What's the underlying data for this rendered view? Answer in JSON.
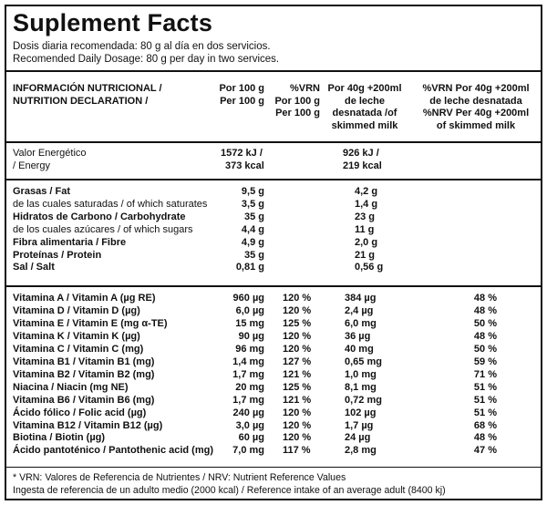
{
  "title": "Suplement Facts",
  "dosage": [
    "Dosis diaria recomendada: 80 g al día en dos servicios.",
    "Recomended Daily Dosage: 80 g per day in two services."
  ],
  "header": {
    "label": [
      "INFORMACIÓN NUTRICIONAL /",
      "NUTRITION DECLARATION /"
    ],
    "per100": [
      "Por 100 g",
      "Per 100 g"
    ],
    "vrn100": [
      "%VRN",
      "Por 100 g",
      "Per 100 g"
    ],
    "milk": [
      "Por 40g +200ml",
      "de leche",
      "desnatada /of",
      "skimmed milk"
    ],
    "vrnmilk": [
      "%VRN Por 40g +200ml",
      "de leche desnatada",
      "%NRV Per 40g +200ml",
      "of skimmed milk"
    ]
  },
  "energy": {
    "label": [
      "Valor Energético",
      "/ Energy"
    ],
    "per100": [
      "1572 kJ /",
      "373 kcal"
    ],
    "milk": [
      "926 kJ /",
      "219 kcal"
    ]
  },
  "macros": [
    {
      "label": "Grasas / Fat",
      "bold": true,
      "per100": "9,5 g",
      "milk": "4,2 g"
    },
    {
      "label": "de las cuales saturadas / of which saturates",
      "bold": false,
      "per100": "3,5 g",
      "milk": "1,4 g"
    },
    {
      "label": "Hidratos de Carbono / Carbohydrate",
      "bold": true,
      "per100": "35 g",
      "milk": "23 g"
    },
    {
      "label": "de los cuales azúcares / of which sugars",
      "bold": false,
      "per100": "4,4 g",
      "milk": "11 g"
    },
    {
      "label": "Fibra alimentaria / Fibre",
      "bold": true,
      "per100": "4,9 g",
      "milk": "2,0 g"
    },
    {
      "label": "Proteínas / Protein",
      "bold": true,
      "per100": "35 g",
      "milk": "21 g"
    },
    {
      "label": "Sal / Salt",
      "bold": true,
      "per100": "0,81 g",
      "milk": "0,56 g"
    }
  ],
  "vitamins": [
    {
      "label": "Vitamina A / Vitamin A (µg RE)",
      "per100": "960 µg",
      "vrn": "120 %",
      "milk": "384 µg",
      "vrnmilk": "48 %"
    },
    {
      "label": "Vitamina D / Vitamin D (µg)",
      "per100": "6,0 µg",
      "vrn": "120 %",
      "milk": "2,4 µg",
      "vrnmilk": "48 %"
    },
    {
      "label": "Vitamina E / Vitamin E (mg α-TE)",
      "per100": "15 mg",
      "vrn": "125 %",
      "milk": "6,0 mg",
      "vrnmilk": "50 %"
    },
    {
      "label": "Vitamina K / Vitamin K (µg)",
      "per100": "90 µg",
      "vrn": "120 %",
      "milk": "36 µg",
      "vrnmilk": "48 %"
    },
    {
      "label": "Vitamina C / Vitamin C (mg)",
      "per100": "96 mg",
      "vrn": "120 %",
      "milk": "40 mg",
      "vrnmilk": "50 %"
    },
    {
      "label": "Vitamina B1 / Vitamin B1 (mg)",
      "per100": "1,4 mg",
      "vrn": "127 %",
      "milk": "0,65 mg",
      "vrnmilk": "59 %"
    },
    {
      "label": "Vitamina B2 / Vitamin B2 (mg)",
      "per100": "1,7 mg",
      "vrn": "121 %",
      "milk": "1,0 mg",
      "vrnmilk": "71 %"
    },
    {
      "label": "Niacina / Niacin (mg NE)",
      "per100": "20 mg",
      "vrn": "125 %",
      "milk": "8,1 mg",
      "vrnmilk": "51 %"
    },
    {
      "label": "Vitamina B6 / Vitamin B6 (mg)",
      "per100": "1,7 mg",
      "vrn": "121 %",
      "milk": "0,72 mg",
      "vrnmilk": "51 %"
    },
    {
      "label": "Ácido fólico / Folic acid (µg)",
      "per100": "240 µg",
      "vrn": "120 %",
      "milk": "102 µg",
      "vrnmilk": "51 %"
    },
    {
      "label": "Vitamina B12 / Vitamin B12 (µg)",
      "per100": "3,0 µg",
      "vrn": "120 %",
      "milk": "1,7 µg",
      "vrnmilk": "68 %"
    },
    {
      "label": "Biotina / Biotin (µg)",
      "per100": "60 µg",
      "vrn": "120 %",
      "milk": "24 µg",
      "vrnmilk": "48 %"
    },
    {
      "label": "Ácido pantoténico / Pantothenic acid (mg)",
      "per100": "7,0 mg",
      "vrn": "117 %",
      "milk": "2,8 mg",
      "vrnmilk": "47 %"
    }
  ],
  "footnotes": [
    "* VRN: Valores de Referencia de Nutrientes / NRV: Nutrient Reference Values",
    "Ingesta de referencia de un adulto medio (2000 kcal) / Reference intake of an average adult (8400 kj)"
  ]
}
